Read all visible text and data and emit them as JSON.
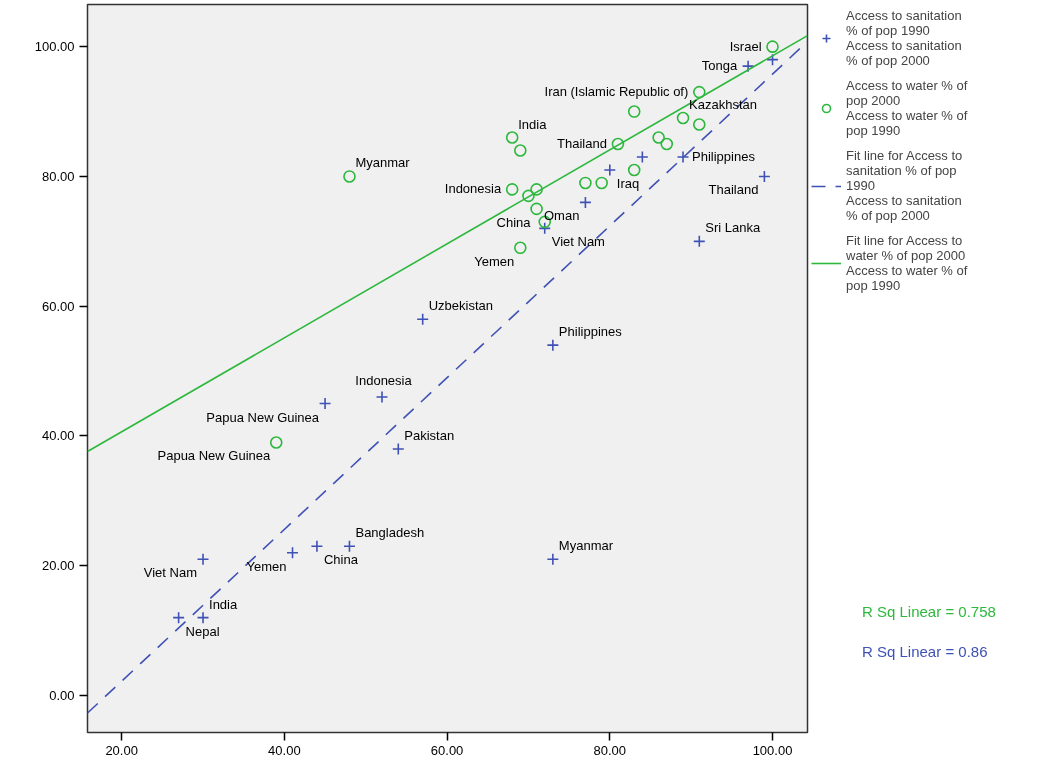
{
  "chart_data": {
    "type": "scatter",
    "xlim": [
      15.8,
      104.3
    ],
    "ylim": [
      -5.7,
      106.5
    ],
    "xticks": [
      {
        "value": 20,
        "label": "20.00"
      },
      {
        "value": 40,
        "label": "40.00"
      },
      {
        "value": 60,
        "label": "60.00"
      },
      {
        "value": 80,
        "label": "80.00"
      },
      {
        "value": 100,
        "label": "100.00"
      }
    ],
    "yticks": [
      {
        "value": 0,
        "label": "0.00"
      },
      {
        "value": 20,
        "label": "20.00"
      },
      {
        "value": 40,
        "label": "40.00"
      },
      {
        "value": 60,
        "label": "60.00"
      },
      {
        "value": 80,
        "label": "80.00"
      },
      {
        "value": 100,
        "label": "100.00"
      }
    ],
    "grid": false,
    "legend": "top right",
    "series": [
      {
        "name": "Access to sanitation\n% of pop 1990\nAccess to sanitation\n% of pop 2000",
        "marker": "cross",
        "color": "#3f51b5",
        "x": [
          100,
          97,
          99,
          89,
          84,
          80,
          77,
          72,
          91,
          57,
          73,
          45,
          52,
          54,
          30,
          41,
          44,
          48,
          73,
          27,
          30
        ],
        "values": [
          98,
          97,
          80,
          83,
          83,
          81,
          76,
          72,
          70,
          58,
          54,
          45,
          46,
          38,
          21,
          22,
          23,
          23,
          21,
          12,
          12
        ]
      },
      {
        "name": "Access to water % of\npop 2000\nAccess to water % of\npop 1990",
        "marker": "circle",
        "color": "#2db83d",
        "x": [
          100,
          91,
          83,
          89,
          91,
          86,
          87,
          81,
          83,
          77,
          79,
          68,
          69,
          68,
          71,
          70,
          71,
          72,
          69,
          48,
          39
        ],
        "values": [
          100,
          93,
          90,
          89,
          88,
          86,
          85,
          85,
          81,
          79,
          79,
          86,
          84,
          78,
          78,
          77,
          75,
          73,
          69,
          80,
          39
        ]
      },
      {
        "name": "Fit line for Access to\nsanitation % of pop\n1990\nAccess to sanitation\n% of pop 2000",
        "type": "line",
        "line_style": "dashed",
        "color": "#3f51b5",
        "x": [
          15.8,
          104.3
        ],
        "values": [
          -2.7,
          100.8
        ]
      },
      {
        "name": "Fit line for Access to\nwater % of pop 2000\nAccess to water % of\npop 1990",
        "type": "line",
        "line_style": "solid",
        "color": "#2db83d",
        "x": [
          15.8,
          104.3
        ],
        "values": [
          37.6,
          101.7
        ]
      }
    ],
    "annotations": [
      {
        "text": "Israel",
        "x": 100,
        "y": 100
      },
      {
        "text": "Tonga",
        "x": 97,
        "y": 97
      },
      {
        "text": "Iran (Islamic Republic of)",
        "x": 91,
        "y": 93
      },
      {
        "text": "India",
        "x": 68,
        "y": 86
      },
      {
        "text": "Thailand",
        "x": 81,
        "y": 85
      },
      {
        "text": "Kazakhstan",
        "x": 89,
        "y": 89
      },
      {
        "text": "Myanmar",
        "x": 48,
        "y": 80
      },
      {
        "text": "Iraq",
        "x": 80,
        "y": 81
      },
      {
        "text": "Indonesia",
        "x": 68,
        "y": 78
      },
      {
        "text": "Philippines",
        "x": 89,
        "y": 83
      },
      {
        "text": "Thailand",
        "x": 99,
        "y": 80
      },
      {
        "text": "Oman",
        "x": 77,
        "y": 76
      },
      {
        "text": "China",
        "x": 71,
        "y": 75
      },
      {
        "text": "Viet Nam",
        "x": 72,
        "y": 72
      },
      {
        "text": "Yemen",
        "x": 69,
        "y": 69
      },
      {
        "text": "Sri Lanka",
        "x": 91,
        "y": 70
      },
      {
        "text": "Uzbekistan",
        "x": 57,
        "y": 58
      },
      {
        "text": "Philippines",
        "x": 73,
        "y": 54
      },
      {
        "text": "Papua New Guinea",
        "x": 45,
        "y": 45
      },
      {
        "text": "Indonesia",
        "x": 52,
        "y": 46
      },
      {
        "text": "Papua New Guinea",
        "x": 39,
        "y": 39
      },
      {
        "text": "Pakistan",
        "x": 54,
        "y": 38
      },
      {
        "text": "Viet Nam",
        "x": 30,
        "y": 21
      },
      {
        "text": "Bangladesh",
        "x": 48,
        "y": 23
      },
      {
        "text": "Myanmar",
        "x": 73,
        "y": 21
      },
      {
        "text": "China",
        "x": 44,
        "y": 23
      },
      {
        "text": "Yemen",
        "x": 41,
        "y": 22
      },
      {
        "text": "Nepal",
        "x": 27,
        "y": 12
      },
      {
        "text": "India",
        "x": 30,
        "y": 12
      },
      "R Sq Linear = 0.758",
      "R Sq Linear = 0.86"
    ]
  }
}
